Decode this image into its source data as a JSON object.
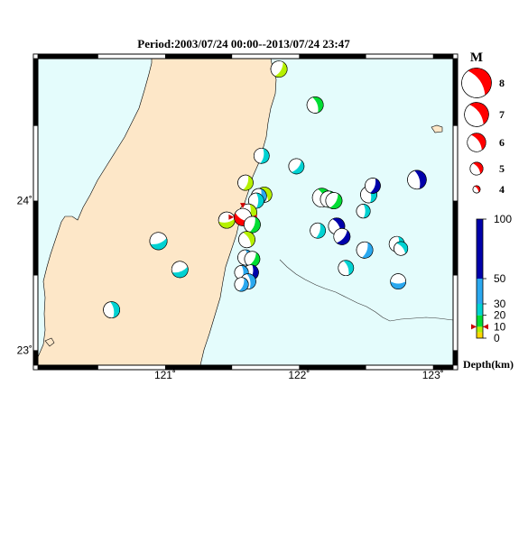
{
  "title": "Period:2003/07/24 00:00--2013/07/24 23:47",
  "colors": {
    "sea": "#e4fcfc",
    "land": "#fde7c8",
    "frame": "#000000",
    "shallow": "#ffd700",
    "s10_20": "#00dd33",
    "s20_30": "#00d2d2",
    "s30_50": "#2aa8ef",
    "deep": "#0000aa",
    "highlight": "#ff0000"
  },
  "map": {
    "lon_range": [
      120.05,
      123.15
    ],
    "lat_range": [
      22.9,
      24.95
    ],
    "x_ticks": [
      {
        "lon": 121,
        "label": "121˚"
      },
      {
        "lon": 122,
        "label": "122˚"
      },
      {
        "lon": 123,
        "label": "123˚"
      }
    ],
    "y_ticks": [
      {
        "lat": 24,
        "label": "24˚"
      },
      {
        "lat": 23,
        "label": "23˚"
      }
    ]
  },
  "events": [
    {
      "lon": 121.85,
      "lat": 24.88,
      "depth": 5,
      "mag": 5.0,
      "rot": 30
    },
    {
      "lon": 122.12,
      "lat": 24.64,
      "depth": 15,
      "mag": 5.0,
      "rot": -20
    },
    {
      "lon": 121.72,
      "lat": 24.3,
      "depth": 25,
      "mag": 4.8,
      "rot": 10
    },
    {
      "lon": 121.98,
      "lat": 24.23,
      "depth": 25,
      "mag": 4.8,
      "rot": 40
    },
    {
      "lon": 122.88,
      "lat": 24.14,
      "depth": 60,
      "mag": 5.5,
      "rot": -15
    },
    {
      "lon": 121.6,
      "lat": 24.12,
      "depth": 5,
      "mag": 4.8,
      "rot": 20
    },
    {
      "lon": 121.74,
      "lat": 24.04,
      "depth": 5,
      "mag": 4.8,
      "rot": -30
    },
    {
      "lon": 121.7,
      "lat": 24.03,
      "depth": 35,
      "mag": 4.8,
      "rot": 15
    },
    {
      "lon": 121.68,
      "lat": 24.0,
      "depth": 25,
      "mag": 4.8,
      "rot": 0
    },
    {
      "lon": 122.17,
      "lat": 24.02,
      "depth": 15,
      "mag": 5.5,
      "rot": -25
    },
    {
      "lon": 122.22,
      "lat": 24.01,
      "depth": 15,
      "mag": 5.0,
      "rot": 10
    },
    {
      "lon": 122.26,
      "lat": 24.0,
      "depth": 15,
      "mag": 5.0,
      "rot": 30
    },
    {
      "lon": 122.48,
      "lat": 23.93,
      "depth": 25,
      "mag": 4.5,
      "rot": 0
    },
    {
      "lon": 122.52,
      "lat": 24.04,
      "depth": 25,
      "mag": 5.0,
      "rot": -10
    },
    {
      "lon": 122.55,
      "lat": 24.1,
      "depth": 70,
      "mag": 4.8,
      "rot": 20
    },
    {
      "lon": 121.62,
      "lat": 23.92,
      "depth": 5,
      "mag": 5.2,
      "rot": 10
    },
    {
      "lon": 121.46,
      "lat": 23.87,
      "depth": 5,
      "mag": 5.0,
      "rot": 80
    },
    {
      "lon": 121.58,
      "lat": 23.89,
      "depth": 10,
      "mag": 5.2,
      "rot": 120,
      "highlight": true
    },
    {
      "lon": 121.65,
      "lat": 23.84,
      "depth": 15,
      "mag": 5.0,
      "rot": 20
    },
    {
      "lon": 121.61,
      "lat": 23.74,
      "depth": 5,
      "mag": 5.0,
      "rot": -30
    },
    {
      "lon": 122.14,
      "lat": 23.8,
      "depth": 25,
      "mag": 4.8,
      "rot": 15
    },
    {
      "lon": 122.28,
      "lat": 23.83,
      "depth": 70,
      "mag": 5.0,
      "rot": -30
    },
    {
      "lon": 122.32,
      "lat": 23.76,
      "depth": 70,
      "mag": 5.0,
      "rot": 40
    },
    {
      "lon": 122.73,
      "lat": 23.71,
      "depth": 25,
      "mag": 4.8,
      "rot": 10
    },
    {
      "lon": 122.76,
      "lat": 23.68,
      "depth": 25,
      "mag": 4.5,
      "rot": -40
    },
    {
      "lon": 122.49,
      "lat": 23.67,
      "depth": 35,
      "mag": 5.0,
      "rot": 20
    },
    {
      "lon": 121.6,
      "lat": 23.62,
      "depth": 35,
      "mag": 4.8,
      "rot": 0
    },
    {
      "lon": 121.65,
      "lat": 23.61,
      "depth": 15,
      "mag": 4.8,
      "rot": 30
    },
    {
      "lon": 121.64,
      "lat": 23.52,
      "depth": 70,
      "mag": 4.8,
      "rot": 10
    },
    {
      "lon": 121.57,
      "lat": 23.52,
      "depth": 30,
      "mag": 4.5,
      "rot": 0
    },
    {
      "lon": 121.62,
      "lat": 23.46,
      "depth": 35,
      "mag": 4.8,
      "rot": -10
    },
    {
      "lon": 121.57,
      "lat": 23.44,
      "depth": 35,
      "mag": 4.5,
      "rot": 20
    },
    {
      "lon": 122.35,
      "lat": 23.55,
      "depth": 25,
      "mag": 4.8,
      "rot": -20
    },
    {
      "lon": 122.74,
      "lat": 23.46,
      "depth": 35,
      "mag": 4.8,
      "rot": 90
    },
    {
      "lon": 120.95,
      "lat": 23.73,
      "depth": 25,
      "mag": 5.2,
      "rot": 70
    },
    {
      "lon": 121.11,
      "lat": 23.54,
      "depth": 25,
      "mag": 5.0,
      "rot": 70
    },
    {
      "lon": 120.6,
      "lat": 23.27,
      "depth": 25,
      "mag": 5.0,
      "rot": -10
    }
  ],
  "legend": {
    "title": "M",
    "items": [
      {
        "label": "8",
        "mag": 8
      },
      {
        "label": "7",
        "mag": 7
      },
      {
        "label": "6",
        "mag": 6
      },
      {
        "label": "5",
        "mag": 5
      },
      {
        "label": "4",
        "mag": 4
      }
    ]
  },
  "colorbar": {
    "title": "Depth(km)",
    "segments": [
      {
        "from": 0,
        "to": 5,
        "color": "#ffd700"
      },
      {
        "from": 5,
        "to": 10,
        "color": "#b5f000"
      },
      {
        "from": 10,
        "to": 20,
        "color": "#00dd33"
      },
      {
        "from": 20,
        "to": 30,
        "color": "#00d2d2"
      },
      {
        "from": 30,
        "to": 50,
        "color": "#2aa8ef"
      },
      {
        "from": 50,
        "to": 100,
        "color": "#0000aa"
      }
    ],
    "ticks": [
      {
        "value": 100,
        "label": "100"
      },
      {
        "value": 50,
        "label": "50"
      },
      {
        "value": 30,
        "label": "30"
      },
      {
        "value": 20,
        "label": "20"
      },
      {
        "value": 10,
        "label": "10"
      },
      {
        "value": 0,
        "label": "0"
      }
    ],
    "marker_value": 10
  }
}
